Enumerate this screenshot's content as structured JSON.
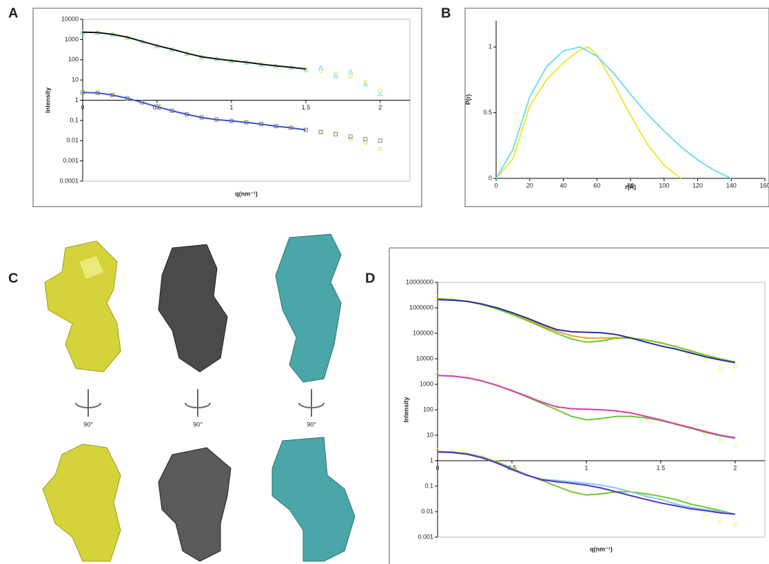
{
  "chart_data": [
    {
      "panel": "A",
      "type": "scatter",
      "y_scale": "log",
      "xlim": [
        0,
        2.2
      ],
      "ylim": [
        0.0001,
        10000
      ],
      "xticks": [
        0,
        0.5,
        1,
        1.5,
        2
      ],
      "yticks": [
        0.0001,
        0.001,
        0.01,
        0.1,
        1,
        10,
        100,
        1000,
        10000
      ],
      "xaxis_crosses": 1,
      "xlabel": "q(nm⁻¹)",
      "ylabel": "Intensity",
      "x": [
        0,
        0.1,
        0.2,
        0.3,
        0.4,
        0.5,
        0.6,
        0.7,
        0.8,
        0.9,
        1.0,
        1.1,
        1.2,
        1.3,
        1.4,
        1.5,
        1.6,
        1.7,
        1.8,
        1.9,
        2.0
      ],
      "series": [
        {
          "color": "#e5e52a",
          "marker": "circle",
          "values": [
            2300,
            2200,
            1800,
            1300,
            800,
            500,
            330,
            210,
            140,
            110,
            90,
            75,
            60,
            50,
            42,
            35,
            28,
            20,
            15,
            8,
            3
          ]
        },
        {
          "color": "#6fe0e6",
          "marker": "triangle",
          "values": [
            2200,
            2100,
            1700,
            1200,
            750,
            460,
            300,
            190,
            130,
            105,
            85,
            70,
            55,
            47,
            40,
            30,
            40,
            15,
            25,
            6,
            2
          ]
        },
        {
          "color": "#111111",
          "marker": "line",
          "values": [
            2300,
            2200,
            1800,
            1300,
            800,
            500,
            330,
            210,
            140,
            110,
            90,
            75,
            60,
            50,
            42,
            35,
            null,
            null,
            null,
            null,
            null
          ]
        },
        {
          "color": "#e5e52a",
          "marker": "circle",
          "values": [
            2.5,
            2.4,
            1.9,
            1.3,
            0.8,
            0.5,
            0.32,
            0.21,
            0.15,
            0.12,
            0.1,
            0.085,
            0.07,
            0.055,
            0.045,
            0.035,
            0.025,
            0.02,
            0.012,
            0.008,
            0.004
          ]
        },
        {
          "color": "#888888",
          "marker": "square",
          "values": [
            2.4,
            2.3,
            1.8,
            1.25,
            0.78,
            0.48,
            0.3,
            0.2,
            0.14,
            0.11,
            0.095,
            0.08,
            0.066,
            0.052,
            0.043,
            0.034,
            0.027,
            0.021,
            0.016,
            0.012,
            0.01
          ]
        },
        {
          "color": "#3a4fd8",
          "marker": "line",
          "values": [
            2.4,
            2.3,
            1.8,
            1.25,
            0.78,
            0.48,
            0.3,
            0.2,
            0.14,
            0.11,
            0.095,
            0.08,
            0.066,
            0.052,
            0.043,
            0.034,
            null,
            null,
            null,
            null,
            null
          ]
        }
      ]
    },
    {
      "panel": "B",
      "type": "line",
      "xlim": [
        0,
        160
      ],
      "ylim": [
        0,
        1.2
      ],
      "xticks": [
        0,
        20,
        40,
        60,
        80,
        100,
        120,
        140,
        160
      ],
      "yticks": [
        0,
        0.5,
        1
      ],
      "xlabel": "r(Å)",
      "ylabel": "P(r)",
      "series": [
        {
          "color": "#f0e63a",
          "marker": "line",
          "x": [
            0,
            10,
            20,
            30,
            40,
            50,
            55,
            60,
            70,
            80,
            90,
            100,
            110
          ],
          "values": [
            0,
            0.15,
            0.55,
            0.75,
            0.88,
            0.98,
            1.0,
            0.94,
            0.72,
            0.48,
            0.26,
            0.1,
            0
          ]
        },
        {
          "color": "#6fe0e6",
          "marker": "line",
          "x": [
            0,
            10,
            20,
            30,
            40,
            50,
            60,
            70,
            80,
            90,
            100,
            110,
            120,
            130,
            140
          ],
          "values": [
            0,
            0.22,
            0.62,
            0.85,
            0.97,
            1.0,
            0.93,
            0.8,
            0.64,
            0.49,
            0.36,
            0.24,
            0.14,
            0.06,
            0
          ]
        }
      ]
    },
    {
      "panel": "C",
      "type": "models",
      "annotations": [
        "90°",
        "90°",
        "90°"
      ]
    },
    {
      "panel": "D",
      "type": "scatter",
      "y_scale": "log",
      "xlim": [
        0,
        2.2
      ],
      "ylim": [
        0.001,
        10000000
      ],
      "xticks": [
        0,
        0.5,
        1,
        1.5,
        2
      ],
      "yticks": [
        0.001,
        0.01,
        0.1,
        1,
        10,
        100,
        1000,
        10000,
        100000,
        1000000,
        10000000
      ],
      "xaxis_crosses": 1,
      "xlabel": "q(nm⁻¹)",
      "ylabel": "Intensity",
      "x": [
        0,
        0.1,
        0.2,
        0.3,
        0.4,
        0.5,
        0.6,
        0.7,
        0.8,
        0.9,
        1.0,
        1.1,
        1.2,
        1.3,
        1.4,
        1.5,
        1.6,
        1.7,
        1.8,
        1.9,
        2.0
      ],
      "series": [
        {
          "color": "#f2f06a",
          "marker": "circle",
          "values": [
            2500000.0,
            2300000.0,
            1900000.0,
            1400000.0,
            950000.0,
            600000.0,
            360000.0,
            200000.0,
            120000.0,
            80000.0,
            65000.0,
            65000.0,
            68000.0,
            65000.0,
            50000.0,
            40000.0,
            30000.0,
            15000.0,
            9000.0,
            4000.0,
            5000.0
          ]
        },
        {
          "color": "#e8a23a",
          "marker": "line",
          "values": [
            2300000.0,
            2100000.0,
            1800000.0,
            1400000.0,
            950000.0,
            600000.0,
            360000.0,
            200000.0,
            120000.0,
            80000.0,
            65000.0,
            65000.0,
            68000.0,
            65000.0,
            55000.0,
            42000.0,
            30000.0,
            21000.0,
            14000.0,
            10000.0,
            7500.0
          ]
        },
        {
          "color": "#6cc82a",
          "marker": "line",
          "values": [
            2200000.0,
            2100000.0,
            1800000.0,
            1350000.0,
            900000.0,
            550000.0,
            320000.0,
            180000.0,
            100000.0,
            60000.0,
            45000.0,
            50000.0,
            65000.0,
            65000.0,
            55000.0,
            42000.0,
            30000.0,
            20000.0,
            14000.0,
            10000.0,
            7500.0
          ]
        },
        {
          "color": "#2a2a9a",
          "marker": "line",
          "values": [
            2100000.0,
            2000000.0,
            1800000.0,
            1400000.0,
            1000000.0,
            650000.0,
            400000.0,
            230000.0,
            140000.0,
            115000.0,
            110000.0,
            105000.0,
            90000.0,
            65000.0,
            45000.0,
            32000.0,
            24000.0,
            17000.0,
            12000.0,
            9000.0,
            7000.0
          ]
        },
        {
          "color": "#f2f06a",
          "marker": "circle",
          "values": [
            2600,
            2400,
            1900,
            1400,
            950,
            580,
            350,
            210,
            130,
            110,
            105,
            100,
            90,
            70,
            50,
            40,
            28,
            18,
            12,
            6,
            4
          ]
        },
        {
          "color": "#6cc82a",
          "marker": "line",
          "values": [
            2200,
            2100,
            1800,
            1350,
            900,
            550,
            320,
            180,
            100,
            55,
            40,
            45,
            55,
            55,
            48,
            38,
            27,
            19,
            13,
            9.5,
            7.5
          ]
        },
        {
          "color": "#d83ab8",
          "marker": "line",
          "values": [
            2200,
            2100,
            1800,
            1350,
            900,
            560,
            340,
            200,
            130,
            110,
            105,
            100,
            90,
            75,
            55,
            40,
            28,
            20,
            14,
            10,
            8
          ]
        },
        {
          "color": "#f2f06a",
          "marker": "circle",
          "values": [
            2.6,
            2.4,
            2.0,
            1.4,
            0.9,
            0.5,
            0.3,
            0.2,
            0.15,
            0.12,
            0.1,
            0.08,
            0.06,
            0.05,
            0.04,
            0.03,
            0.02,
            0.012,
            0.008,
            0.004,
            0.003
          ]
        },
        {
          "color": "#6cc82a",
          "marker": "line",
          "values": [
            2.3,
            2.2,
            1.9,
            1.4,
            0.9,
            0.5,
            0.28,
            0.17,
            0.1,
            0.06,
            0.045,
            0.05,
            0.06,
            0.06,
            0.05,
            0.04,
            0.03,
            0.02,
            0.015,
            0.011,
            0.008
          ]
        },
        {
          "color": "#7ad0ea",
          "marker": "line",
          "values": [
            2.2,
            2.1,
            1.8,
            1.3,
            0.8,
            0.45,
            0.27,
            0.19,
            0.17,
            0.15,
            0.13,
            0.11,
            0.085,
            0.06,
            0.04,
            0.03,
            0.02,
            0.015,
            0.012,
            0.01,
            0.008
          ]
        },
        {
          "color": "#5a2ad0",
          "marker": "line",
          "values": [
            2.2,
            2.1,
            1.8,
            1.3,
            0.8,
            0.45,
            0.27,
            0.18,
            0.15,
            0.13,
            0.11,
            0.085,
            0.06,
            0.042,
            0.03,
            0.022,
            0.017,
            0.013,
            0.011,
            0.009,
            0.008
          ]
        }
      ]
    }
  ]
}
